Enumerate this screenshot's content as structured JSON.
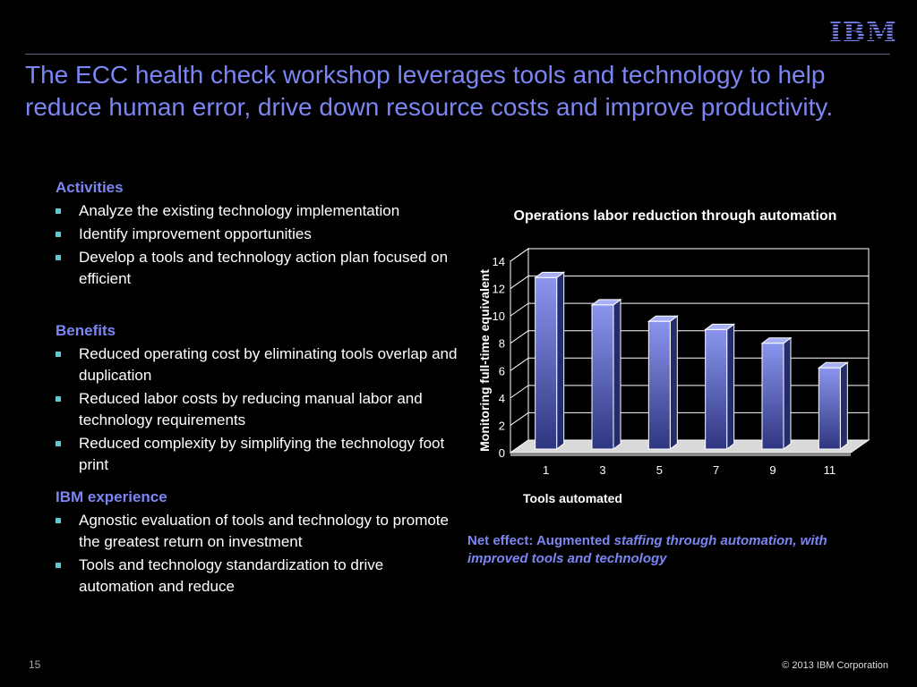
{
  "header": {
    "logo_text": "IBM",
    "title": "The ECC health check workshop leverages tools and technology to help reduce human error, drive down resource costs and improve productivity."
  },
  "sections": [
    {
      "heading": "Activities",
      "items": [
        "Analyze the existing technology implementation",
        "Identify improvement opportunities",
        "Develop a tools and technology action plan focused on efficient"
      ]
    },
    {
      "heading": "Benefits",
      "items": [
        "Reduced operating cost by eliminating tools overlap and duplication",
        "Reduced labor costs by reducing manual labor and technology requirements",
        "Reduced complexity by simplifying the technology foot print"
      ]
    },
    {
      "heading": "IBM experience",
      "items": [
        "Agnostic evaluation of tools and technology to promote the greatest return on investment",
        "Tools and technology standardization to drive automation and reduce"
      ]
    }
  ],
  "chart_data": {
    "type": "bar",
    "title": "Operations labor reduction through automation",
    "xlabel": "Tools automated",
    "ylabel": "Monitoring full-time equivalent",
    "categories": [
      "1",
      "3",
      "5",
      "7",
      "9",
      "11"
    ],
    "values": [
      12.8,
      10.8,
      9.6,
      9.0,
      8.0,
      6.2
    ],
    "ylim": [
      0,
      14
    ],
    "yticks": [
      0,
      2,
      4,
      6,
      8,
      10,
      12,
      14
    ],
    "grid": true,
    "colors": {
      "bar_top": "#8b95ee",
      "bar_bottom": "#2e3680",
      "bar_side": "#252c6b",
      "bar_cap": "#a8b0f5",
      "plot_bg": "#000000",
      "axis": "#ffffff"
    }
  },
  "net_effect": {
    "prefix": "Net effect:  Augmented ",
    "emphasis": "staffing through automation, with improved tools and technology"
  },
  "footer": {
    "page_number": "15",
    "copyright": "© 2013 IBM Corporation"
  }
}
